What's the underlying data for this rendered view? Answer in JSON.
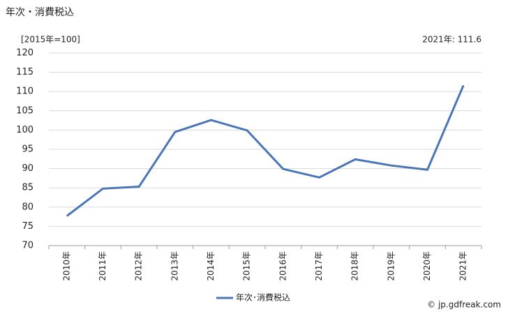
{
  "chart_data": {
    "type": "line",
    "title": "年次・消費税込",
    "subtitle": "[2015年=100]",
    "annotation": "2021年: 111.6",
    "source": "© jp.gdfreak.com",
    "categories": [
      "2010年",
      "2011年",
      "2012年",
      "2013年",
      "2014年",
      "2015年",
      "2016年",
      "2017年",
      "2018年",
      "2019年",
      "2020年",
      "2021年"
    ],
    "series": [
      {
        "name": "年次･消費税込",
        "color": "#4a76b5",
        "values": [
          77.7,
          84.8,
          85.3,
          99.5,
          102.6,
          99.9,
          89.9,
          87.7,
          92.4,
          90.8,
          89.7,
          111.6
        ]
      }
    ],
    "ylim": [
      70,
      120
    ],
    "yticks": [
      70,
      75,
      80,
      85,
      90,
      95,
      100,
      105,
      110,
      115,
      120
    ],
    "grid": true,
    "legend": "bottom"
  }
}
